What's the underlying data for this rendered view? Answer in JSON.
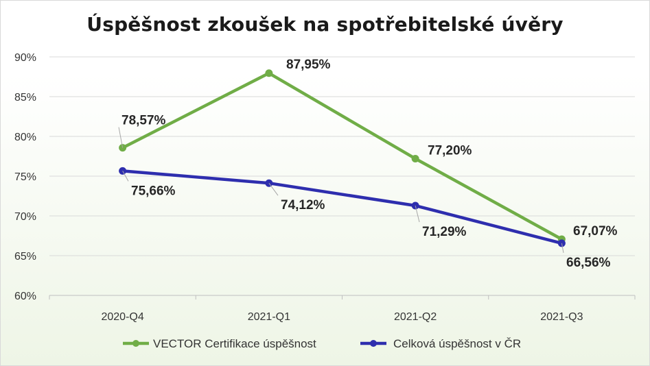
{
  "chart_data": {
    "type": "line",
    "title": "Úspěšnost zkoušek na spotřebitelské úvěry",
    "categories": [
      "2020-Q4",
      "2021-Q1",
      "2021-Q2",
      "2021-Q3"
    ],
    "ylim": [
      60,
      90
    ],
    "yticks": [
      "60%",
      "65%",
      "70%",
      "75%",
      "80%",
      "85%",
      "90%"
    ],
    "ytick_values": [
      60,
      65,
      70,
      75,
      80,
      85,
      90
    ],
    "grid": true,
    "legend_position": "bottom",
    "series": [
      {
        "name": "VECTOR Certifikace úspěšnost",
        "color": "#70ad47",
        "values": [
          78.57,
          87.95,
          77.2,
          67.07
        ],
        "labels": [
          "78,57%",
          "87,95%",
          "77,20%",
          "67,07%"
        ]
      },
      {
        "name": "Celková úspěšnost v ČR",
        "color": "#2e2eae",
        "values": [
          75.66,
          74.12,
          71.29,
          66.56
        ],
        "labels": [
          "75,66%",
          "74,12%",
          "71,29%",
          "66,56%"
        ]
      }
    ]
  }
}
